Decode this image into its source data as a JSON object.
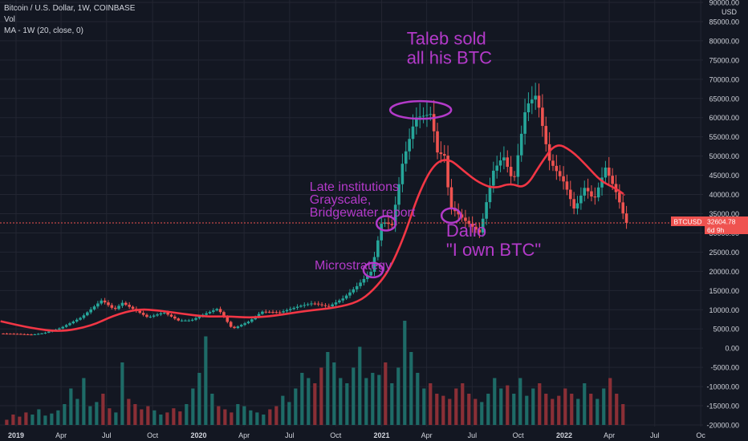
{
  "legend": {
    "line1": "Bitcoin / U.S. Dollar, 1W, COINBASE",
    "line2": "Vol",
    "line3": "MA - 1W (20, close, 0)"
  },
  "price_axis": {
    "currency_label": "USD",
    "ticks": [
      "90000.00",
      "85000.00",
      "80000.00",
      "75000.00",
      "70000.00",
      "65000.00",
      "60000.00",
      "55000.00",
      "50000.00",
      "45000.00",
      "40000.00",
      "35000.00",
      "30000.00",
      "25000.00",
      "20000.00",
      "15000.00",
      "10000.00",
      "5000.00",
      "0.00",
      "-5000.00",
      "-10000.00",
      "-15000.00",
      "-20000.00"
    ]
  },
  "time_axis": {
    "labels": [
      {
        "text": "2019",
        "date": "2019-01-01",
        "bold": true
      },
      {
        "text": "Apr",
        "date": "2019-04-01",
        "bold": false
      },
      {
        "text": "Jul",
        "date": "2019-07-01",
        "bold": false
      },
      {
        "text": "Oct",
        "date": "2019-10-01",
        "bold": false
      },
      {
        "text": "2020",
        "date": "2020-01-01",
        "bold": true
      },
      {
        "text": "Apr",
        "date": "2020-04-01",
        "bold": false
      },
      {
        "text": "Jul",
        "date": "2020-07-01",
        "bold": false
      },
      {
        "text": "Oct",
        "date": "2020-10-01",
        "bold": false
      },
      {
        "text": "2021",
        "date": "2021-01-01",
        "bold": true
      },
      {
        "text": "Apr",
        "date": "2021-04-01",
        "bold": false
      },
      {
        "text": "Jul",
        "date": "2021-07-01",
        "bold": false
      },
      {
        "text": "Oct",
        "date": "2021-10-01",
        "bold": false
      },
      {
        "text": "2022",
        "date": "2022-01-01",
        "bold": true
      },
      {
        "text": "Apr",
        "date": "2022-04-01",
        "bold": false
      },
      {
        "text": "Jul",
        "date": "2022-07-01",
        "bold": false
      },
      {
        "text": "Oc",
        "date": "2022-10-01",
        "bold": false
      }
    ]
  },
  "price_tag": {
    "symbol": "BTCUSD",
    "price": "32604.78",
    "countdown": "6d 9h",
    "value": 32604.78
  },
  "annotations": [
    {
      "text": [
        "Taleb sold",
        "all his BTC"
      ],
      "date": "2021-02-20",
      "price": 79000,
      "size": "large",
      "ellipse": {
        "date": "2021-03-20",
        "price": 62000
      }
    },
    {
      "text": [
        "Late institutions",
        "Grayscale,",
        "Bridgewater report"
      ],
      "date": "2020-08-10",
      "price": 41000,
      "size": "medium",
      "ellipse": {
        "date": "2021-01-10",
        "price": 32500
      }
    },
    {
      "text": [
        "Dalio",
        "\"I own BTC\""
      ],
      "date": "2021-05-10",
      "price": 29000,
      "size": "large",
      "ellipse": {
        "date": "2021-05-20",
        "price": 34500
      }
    },
    {
      "text": [
        "Microstrategy"
      ],
      "date": "2020-08-20",
      "price": 20500,
      "size": "medium",
      "ellipse": {
        "date": "2020-12-15",
        "price": 20300
      }
    }
  ],
  "colors": {
    "background": "#131722",
    "grid": "#232632",
    "up": "#26a69a",
    "down": "#ef5350",
    "vol_up": "#1e6b67",
    "vol_down": "#8a2f36",
    "ma": "#f23645",
    "annotation": "#b33ac9",
    "axis_text": "#d1d4dc",
    "price_line": "#ef5350"
  },
  "chart_data": {
    "type": "candlestick",
    "title": "Bitcoin / U.S. Dollar, 1W, COINBASE",
    "ylabel": "USD",
    "ylim": [
      -20000,
      90000
    ],
    "indicator": "MA - 1W (20, close, 0)",
    "price_path": [
      [
        "2018-12-01",
        3800
      ],
      [
        "2019-01-05",
        3700
      ],
      [
        "2019-02-05",
        3500
      ],
      [
        "2019-03-01",
        3900
      ],
      [
        "2019-04-03",
        5200
      ],
      [
        "2019-05-15",
        8000
      ],
      [
        "2019-06-25",
        12500
      ],
      [
        "2019-07-20",
        10000
      ],
      [
        "2019-08-05",
        11800
      ],
      [
        "2019-09-25",
        8000
      ],
      [
        "2019-10-27",
        9300
      ],
      [
        "2019-11-25",
        7200
      ],
      [
        "2019-12-20",
        7200
      ],
      [
        "2020-01-15",
        8800
      ],
      [
        "2020-02-12",
        10300
      ],
      [
        "2020-03-12",
        5000
      ],
      [
        "2020-04-15",
        7000
      ],
      [
        "2020-05-10",
        9500
      ],
      [
        "2020-06-15",
        9300
      ],
      [
        "2020-07-25",
        11000
      ],
      [
        "2020-08-20",
        11700
      ],
      [
        "2020-09-20",
        10800
      ],
      [
        "2020-10-20",
        13000
      ],
      [
        "2020-11-15",
        16000
      ],
      [
        "2020-12-15",
        20000
      ],
      [
        "2021-01-05",
        33000
      ],
      [
        "2021-01-25",
        32000
      ],
      [
        "2021-02-15",
        48000
      ],
      [
        "2021-03-13",
        60000
      ],
      [
        "2021-04-14",
        61000
      ],
      [
        "2021-04-25",
        51000
      ],
      [
        "2021-05-12",
        50000
      ],
      [
        "2021-05-20",
        37000
      ],
      [
        "2021-06-22",
        33000
      ],
      [
        "2021-07-20",
        30000
      ],
      [
        "2021-08-15",
        46000
      ],
      [
        "2021-09-05",
        50000
      ],
      [
        "2021-09-25",
        43000
      ],
      [
        "2021-10-20",
        63000
      ],
      [
        "2021-11-10",
        66000
      ],
      [
        "2021-12-05",
        49000
      ],
      [
        "2022-01-05",
        43000
      ],
      [
        "2022-01-25",
        36000
      ],
      [
        "2022-02-15",
        42000
      ],
      [
        "2022-03-05",
        38500
      ],
      [
        "2022-03-28",
        47000
      ],
      [
        "2022-04-20",
        40000
      ],
      [
        "2022-05-08",
        32604.78
      ]
    ],
    "ma_path": [
      [
        "2018-12-01",
        7000
      ],
      [
        "2019-02-01",
        5200
      ],
      [
        "2019-04-01",
        4200
      ],
      [
        "2019-06-01",
        5800
      ],
      [
        "2019-07-15",
        8500
      ],
      [
        "2019-09-01",
        10200
      ],
      [
        "2019-10-15",
        9800
      ],
      [
        "2019-12-01",
        8900
      ],
      [
        "2020-01-15",
        8200
      ],
      [
        "2020-03-01",
        8300
      ],
      [
        "2020-04-15",
        7900
      ],
      [
        "2020-06-01",
        8400
      ],
      [
        "2020-08-01",
        9700
      ],
      [
        "2020-10-01",
        10500
      ],
      [
        "2020-11-15",
        12000
      ],
      [
        "2020-12-15",
        15000
      ],
      [
        "2021-01-15",
        20000
      ],
      [
        "2021-02-15",
        29000
      ],
      [
        "2021-03-15",
        40000
      ],
      [
        "2021-04-15",
        48000
      ],
      [
        "2021-05-15",
        49500
      ],
      [
        "2021-06-15",
        46000
      ],
      [
        "2021-07-15",
        43000
      ],
      [
        "2021-08-15",
        41500
      ],
      [
        "2021-09-15",
        43000
      ],
      [
        "2021-10-15",
        41500
      ],
      [
        "2021-11-15",
        48000
      ],
      [
        "2021-12-15",
        53500
      ],
      [
        "2022-01-15",
        51500
      ],
      [
        "2022-02-15",
        47500
      ],
      [
        "2022-03-15",
        43500
      ],
      [
        "2022-04-15",
        41500
      ],
      [
        "2022-05-01",
        40000
      ]
    ],
    "volume_levels": [
      0.05,
      0.1,
      0.08,
      0.12,
      0.1,
      0.15,
      0.09,
      0.11,
      0.14,
      0.2,
      0.35,
      0.25,
      0.45,
      0.18,
      0.22,
      0.3,
      0.16,
      0.12,
      0.6,
      0.25,
      0.2,
      0.15,
      0.18,
      0.14,
      0.1,
      0.12,
      0.16,
      0.13,
      0.2,
      0.35,
      0.5,
      0.85,
      0.3,
      0.18,
      0.15,
      0.12,
      0.2,
      0.18,
      0.14,
      0.12,
      0.1,
      0.15,
      0.18,
      0.28,
      0.22,
      0.35,
      0.5,
      0.45,
      0.4,
      0.55,
      0.7,
      0.6,
      0.45,
      0.4,
      0.55,
      0.75,
      0.45,
      0.5,
      0.48,
      0.6,
      0.4,
      0.55,
      1.0,
      0.7,
      0.5,
      0.35,
      0.4,
      0.3,
      0.28,
      0.25,
      0.35,
      0.4,
      0.3,
      0.25,
      0.22,
      0.3,
      0.45,
      0.35,
      0.38,
      0.3,
      0.45,
      0.28,
      0.35,
      0.4,
      0.3,
      0.25,
      0.28,
      0.35,
      0.3,
      0.25,
      0.4,
      0.3,
      0.25,
      0.35,
      0.45,
      0.3,
      0.2
    ]
  }
}
